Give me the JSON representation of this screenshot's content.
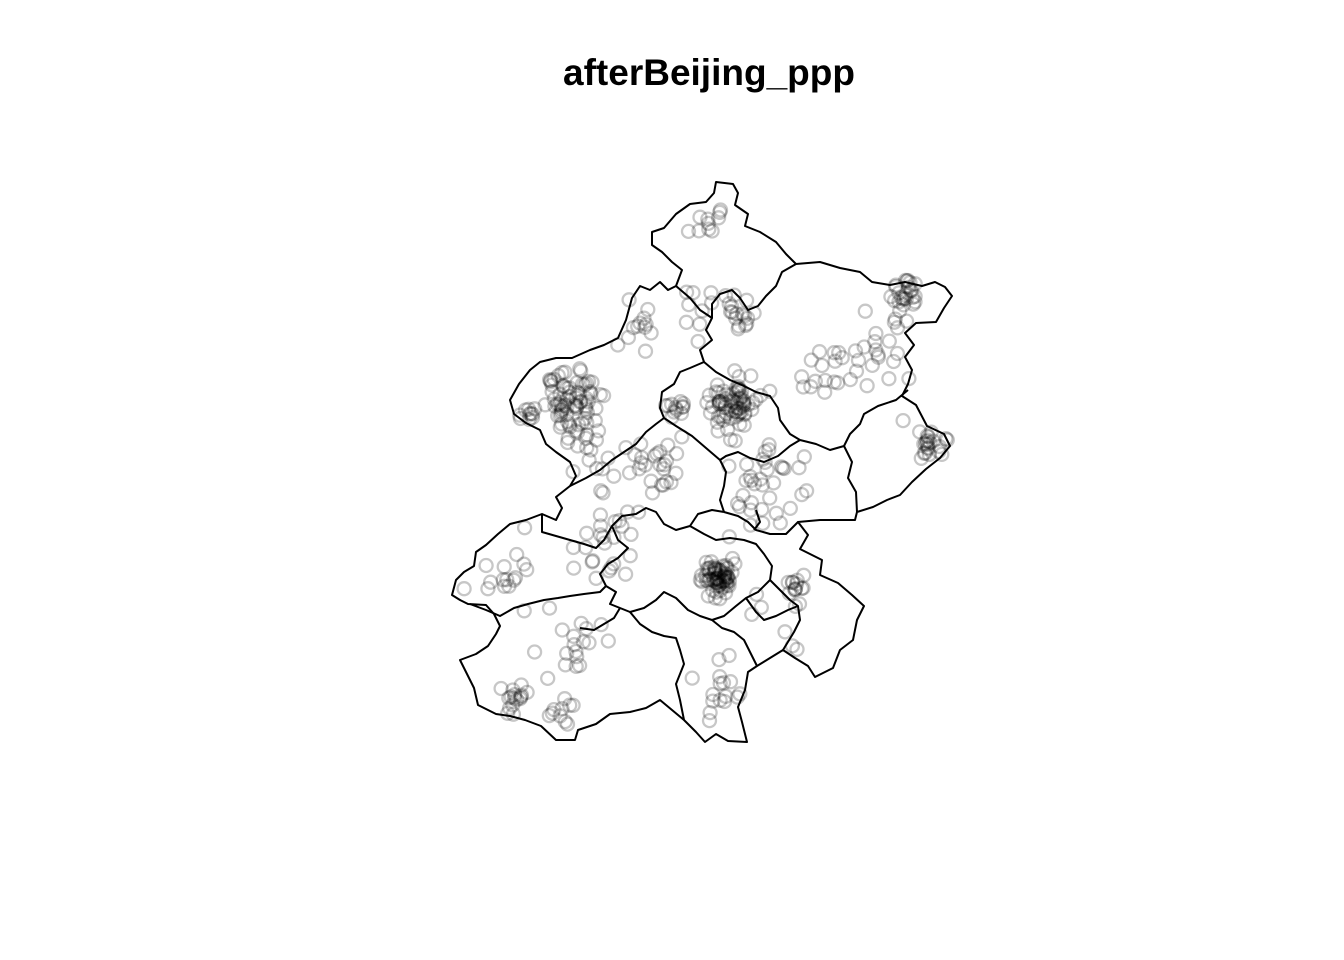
{
  "plot": {
    "title": "afterBeijing_ppp",
    "type": "point-pattern map",
    "marker": "open circle",
    "marker_color": "#000000",
    "marker_alpha": 0.22,
    "background": "#ffffff"
  }
}
